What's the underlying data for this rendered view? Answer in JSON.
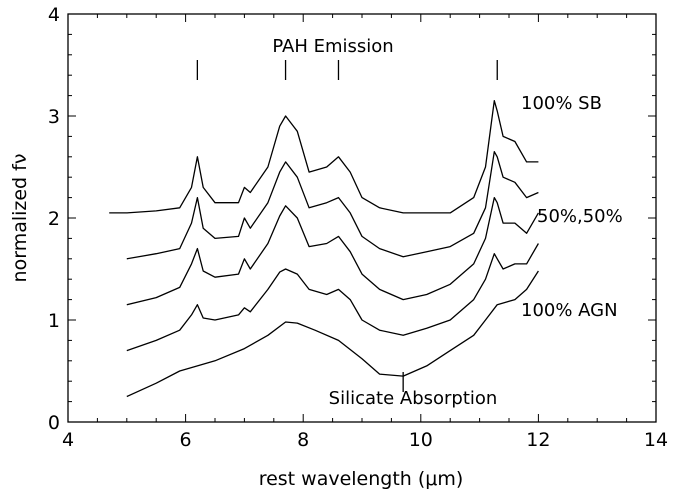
{
  "chart_data": {
    "type": "line",
    "xlabel": "rest wavelength (μm)",
    "ylabel": "normalized fν",
    "xlim": [
      4,
      14
    ],
    "ylim": [
      0,
      4
    ],
    "xticks": [
      4,
      6,
      8,
      10,
      12,
      14
    ],
    "yticks": [
      0,
      1,
      2,
      3,
      4
    ],
    "grid": false,
    "annotations": {
      "pah": "PAH Emission",
      "silicate": "Silicate Absorption",
      "sb": "100% SB",
      "mix": "50%,50%",
      "agn": "100% AGN"
    },
    "pah_marker_wavelengths": [
      6.2,
      7.7,
      8.6,
      11.3
    ],
    "silicate_marker_wavelength": 9.7,
    "series": [
      {
        "name": "100% SB",
        "x": [
          4.7,
          5.0,
          5.5,
          5.9,
          6.1,
          6.2,
          6.3,
          6.5,
          6.9,
          7.0,
          7.1,
          7.4,
          7.6,
          7.7,
          7.9,
          8.1,
          8.4,
          8.6,
          8.8,
          9.0,
          9.3,
          9.7,
          10.1,
          10.5,
          10.9,
          11.1,
          11.25,
          11.3,
          11.4,
          11.6,
          11.8,
          12.0
        ],
        "y": [
          2.05,
          2.05,
          2.07,
          2.1,
          2.3,
          2.6,
          2.3,
          2.15,
          2.15,
          2.3,
          2.25,
          2.5,
          2.9,
          3.0,
          2.85,
          2.45,
          2.5,
          2.6,
          2.45,
          2.2,
          2.1,
          2.05,
          2.05,
          2.05,
          2.2,
          2.5,
          3.15,
          3.05,
          2.8,
          2.75,
          2.55,
          2.55
        ]
      },
      {
        "name": "",
        "x": [
          5.0,
          5.5,
          5.9,
          6.1,
          6.2,
          6.3,
          6.5,
          6.9,
          7.0,
          7.1,
          7.4,
          7.6,
          7.7,
          7.9,
          8.1,
          8.4,
          8.6,
          8.8,
          9.0,
          9.3,
          9.7,
          10.1,
          10.5,
          10.9,
          11.1,
          11.25,
          11.3,
          11.4,
          11.6,
          11.8,
          12.0
        ],
        "y": [
          1.6,
          1.65,
          1.7,
          1.95,
          2.2,
          1.9,
          1.8,
          1.82,
          2.0,
          1.9,
          2.15,
          2.45,
          2.55,
          2.4,
          2.1,
          2.15,
          2.2,
          2.05,
          1.82,
          1.7,
          1.62,
          1.67,
          1.72,
          1.85,
          2.1,
          2.65,
          2.6,
          2.4,
          2.35,
          2.2,
          2.25
        ]
      },
      {
        "name": "50%,50%",
        "x": [
          5.0,
          5.5,
          5.9,
          6.1,
          6.2,
          6.3,
          6.5,
          6.9,
          7.0,
          7.1,
          7.4,
          7.6,
          7.7,
          7.9,
          8.1,
          8.4,
          8.6,
          8.8,
          9.0,
          9.3,
          9.7,
          10.1,
          10.5,
          10.9,
          11.1,
          11.25,
          11.3,
          11.4,
          11.6,
          11.8,
          12.0
        ],
        "y": [
          1.15,
          1.22,
          1.32,
          1.55,
          1.7,
          1.48,
          1.42,
          1.45,
          1.6,
          1.5,
          1.75,
          2.02,
          2.12,
          2.0,
          1.72,
          1.75,
          1.82,
          1.67,
          1.45,
          1.3,
          1.2,
          1.25,
          1.35,
          1.55,
          1.8,
          2.2,
          2.15,
          1.95,
          1.95,
          1.85,
          2.05
        ]
      },
      {
        "name": "",
        "x": [
          5.0,
          5.5,
          5.9,
          6.1,
          6.2,
          6.3,
          6.5,
          6.9,
          7.0,
          7.1,
          7.4,
          7.6,
          7.7,
          7.9,
          8.1,
          8.4,
          8.6,
          8.8,
          9.0,
          9.3,
          9.7,
          10.1,
          10.5,
          10.9,
          11.1,
          11.25,
          11.3,
          11.4,
          11.6,
          11.8,
          12.0
        ],
        "y": [
          0.7,
          0.8,
          0.9,
          1.05,
          1.15,
          1.02,
          1.0,
          1.05,
          1.12,
          1.08,
          1.3,
          1.47,
          1.5,
          1.45,
          1.3,
          1.25,
          1.3,
          1.2,
          1.0,
          0.9,
          0.85,
          0.92,
          1.0,
          1.2,
          1.4,
          1.65,
          1.6,
          1.5,
          1.55,
          1.55,
          1.75
        ]
      },
      {
        "name": "100% AGN",
        "x": [
          5.0,
          5.5,
          5.9,
          6.2,
          6.5,
          7.0,
          7.4,
          7.7,
          7.9,
          8.2,
          8.6,
          9.0,
          9.3,
          9.7,
          10.1,
          10.5,
          10.9,
          11.1,
          11.3,
          11.6,
          11.8,
          12.0
        ],
        "y": [
          0.25,
          0.38,
          0.5,
          0.55,
          0.6,
          0.72,
          0.85,
          0.98,
          0.97,
          0.9,
          0.8,
          0.62,
          0.47,
          0.45,
          0.55,
          0.7,
          0.85,
          1.0,
          1.15,
          1.2,
          1.3,
          1.48
        ]
      }
    ]
  }
}
